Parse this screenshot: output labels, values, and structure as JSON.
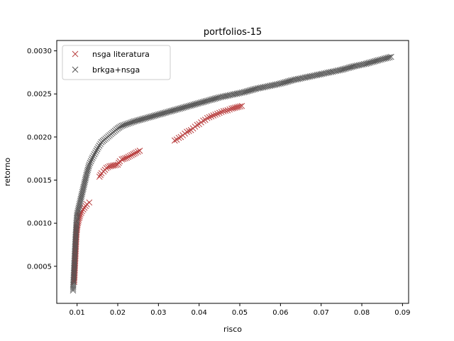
{
  "chart_data": {
    "type": "scatter",
    "title": "portfolios-15",
    "xlabel": "risco",
    "ylabel": "retorno",
    "xlim": [
      0.005,
      0.0915
    ],
    "ylim": [
      7e-05,
      0.00312
    ],
    "xticks": [
      "0.01",
      "0.02",
      "0.03",
      "0.04",
      "0.05",
      "0.06",
      "0.07",
      "0.08",
      "0.09"
    ],
    "xtick_values": [
      0.01,
      0.02,
      0.03,
      0.04,
      0.05,
      0.06,
      0.07,
      0.08,
      0.09
    ],
    "yticks": [
      "0.0005",
      "0.0010",
      "0.0015",
      "0.0020",
      "0.0025",
      "0.0030"
    ],
    "ytick_values": [
      0.0005,
      0.001,
      0.0015,
      0.002,
      0.0025,
      0.003
    ],
    "grid": false,
    "legend_position": "top-left",
    "marker": "x",
    "series": [
      {
        "name": "nsga literatura",
        "color": "#b94040",
        "points": [
          [
            0.0093,
            0.00032
          ],
          [
            0.0094,
            0.00042
          ],
          [
            0.0095,
            0.00052
          ],
          [
            0.0096,
            0.00062
          ],
          [
            0.0097,
            0.00072
          ],
          [
            0.0098,
            0.00082
          ],
          [
            0.0099,
            0.0009
          ],
          [
            0.0101,
            0.00098
          ],
          [
            0.0104,
            0.00104
          ],
          [
            0.0108,
            0.0011
          ],
          [
            0.0112,
            0.00114
          ],
          [
            0.0118,
            0.00118
          ],
          [
            0.0124,
            0.00122
          ],
          [
            0.013,
            0.00124
          ],
          [
            0.0155,
            0.00154
          ],
          [
            0.016,
            0.00158
          ],
          [
            0.0165,
            0.0016
          ],
          [
            0.0172,
            0.00164
          ],
          [
            0.018,
            0.00166
          ],
          [
            0.02,
            0.00168
          ],
          [
            0.0205,
            0.00172
          ],
          [
            0.021,
            0.00174
          ],
          [
            0.0222,
            0.00176
          ],
          [
            0.023,
            0.00178
          ],
          [
            0.0238,
            0.0018
          ],
          [
            0.0245,
            0.00182
          ],
          [
            0.0254,
            0.00184
          ],
          [
            0.034,
            0.00196
          ],
          [
            0.0345,
            0.00197
          ],
          [
            0.035,
            0.00199
          ],
          [
            0.0355,
            0.002
          ],
          [
            0.036,
            0.00202
          ],
          [
            0.0365,
            0.00204
          ],
          [
            0.037,
            0.00206
          ],
          [
            0.0375,
            0.00207
          ],
          [
            0.038,
            0.00208
          ],
          [
            0.0385,
            0.0021
          ],
          [
            0.039,
            0.00212
          ],
          [
            0.0395,
            0.00214
          ],
          [
            0.04,
            0.00215
          ],
          [
            0.0405,
            0.00217
          ],
          [
            0.041,
            0.00219
          ],
          [
            0.0415,
            0.0022
          ],
          [
            0.042,
            0.00222
          ],
          [
            0.0425,
            0.00223
          ],
          [
            0.043,
            0.00224
          ],
          [
            0.044,
            0.00226
          ],
          [
            0.045,
            0.00228
          ],
          [
            0.046,
            0.0023
          ],
          [
            0.047,
            0.00231
          ],
          [
            0.048,
            0.00233
          ],
          [
            0.0505,
            0.00236
          ]
        ]
      },
      {
        "name": "brkga+nsga",
        "color": "#555555",
        "points": [
          [
            0.009,
            0.00022
          ],
          [
            0.0091,
            0.00032
          ],
          [
            0.0092,
            0.00042
          ],
          [
            0.0093,
            0.00052
          ],
          [
            0.0094,
            0.00062
          ],
          [
            0.0095,
            0.00072
          ],
          [
            0.0096,
            0.00082
          ],
          [
            0.0097,
            0.0009
          ],
          [
            0.0098,
            0.00098
          ],
          [
            0.0099,
            0.00104
          ],
          [
            0.01,
            0.0011
          ],
          [
            0.0106,
            0.00122
          ],
          [
            0.0112,
            0.00134
          ],
          [
            0.0118,
            0.00146
          ],
          [
            0.0124,
            0.00158
          ],
          [
            0.013,
            0.00168
          ],
          [
            0.0138,
            0.00176
          ],
          [
            0.0145,
            0.00182
          ],
          [
            0.0152,
            0.00188
          ],
          [
            0.016,
            0.00194
          ],
          [
            0.017,
            0.00198
          ],
          [
            0.018,
            0.00202
          ],
          [
            0.019,
            0.00206
          ],
          [
            0.02,
            0.0021
          ],
          [
            0.021,
            0.00213
          ],
          [
            0.024,
            0.00218
          ],
          [
            0.027,
            0.00222
          ],
          [
            0.03,
            0.00226
          ],
          [
            0.033,
            0.0023
          ],
          [
            0.036,
            0.00234
          ],
          [
            0.039,
            0.00238
          ],
          [
            0.042,
            0.00242
          ],
          [
            0.045,
            0.00246
          ],
          [
            0.048,
            0.00249
          ],
          [
            0.051,
            0.00252
          ],
          [
            0.054,
            0.00256
          ],
          [
            0.057,
            0.00259
          ],
          [
            0.06,
            0.00262
          ],
          [
            0.063,
            0.00266
          ],
          [
            0.066,
            0.00269
          ],
          [
            0.069,
            0.00272
          ],
          [
            0.072,
            0.00275
          ],
          [
            0.075,
            0.00278
          ],
          [
            0.078,
            0.00282
          ],
          [
            0.081,
            0.00285
          ],
          [
            0.084,
            0.00289
          ],
          [
            0.0872,
            0.00293
          ]
        ]
      }
    ]
  }
}
